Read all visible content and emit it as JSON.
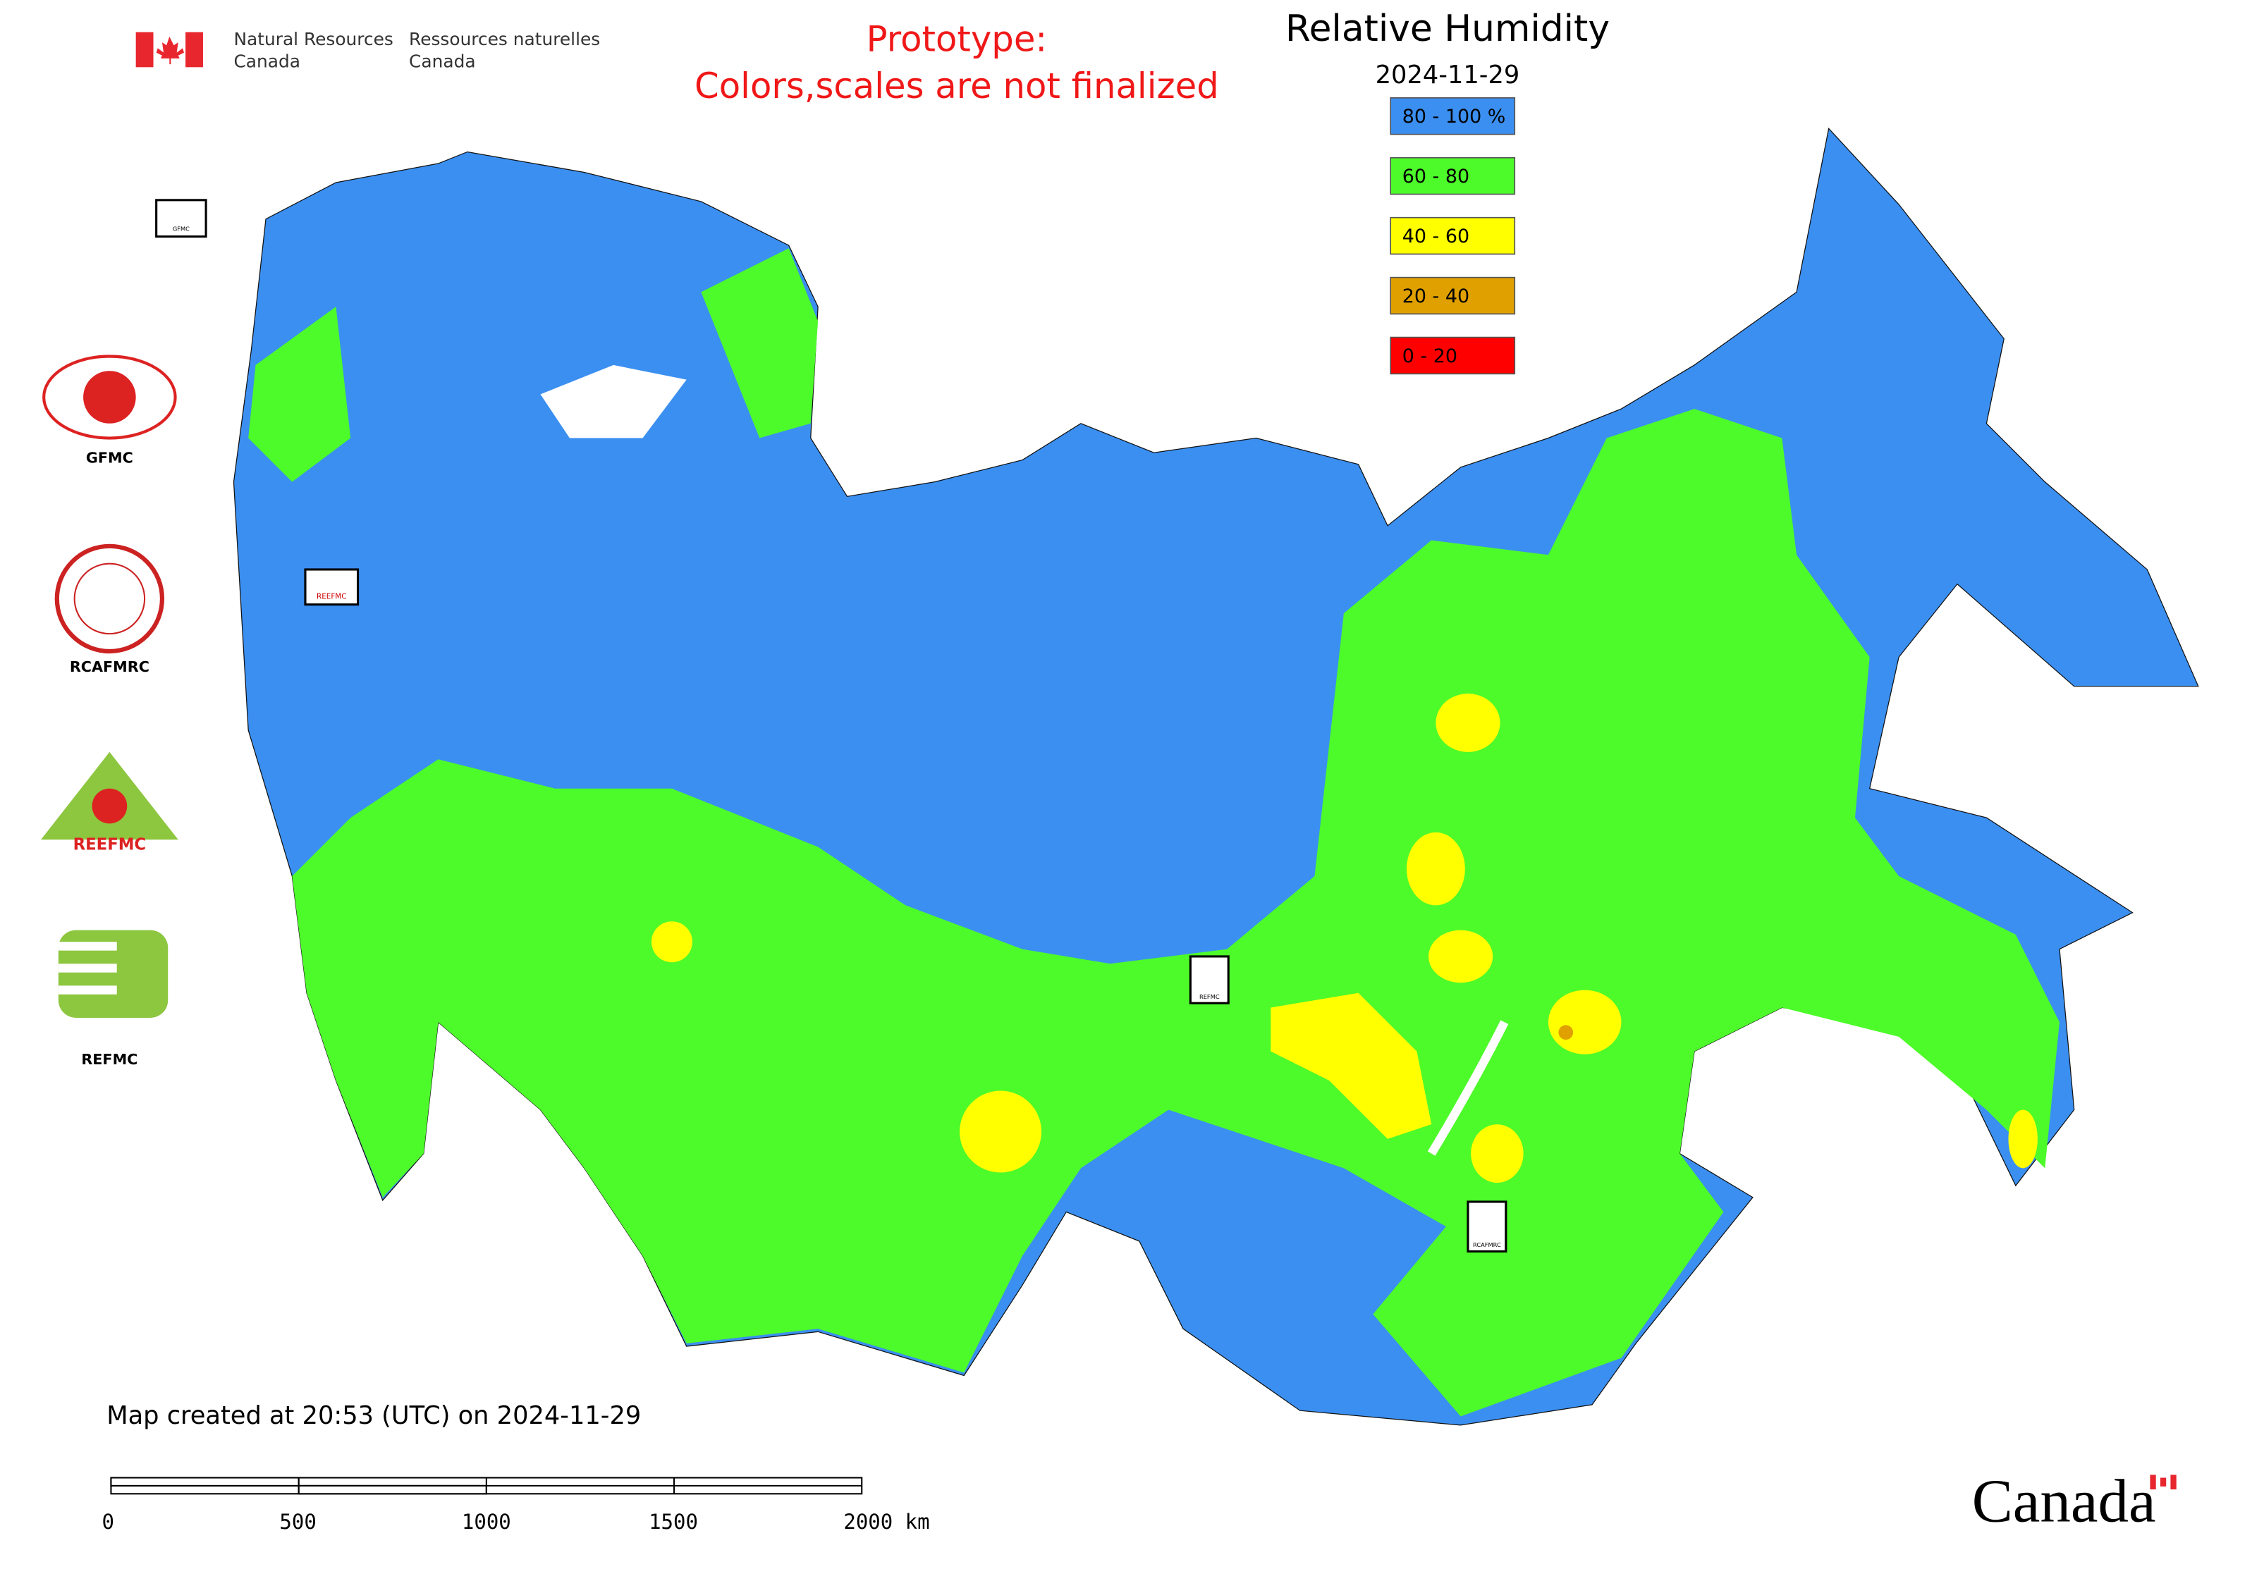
{
  "header": {
    "agency_en": [
      "Natural Resources",
      "Canada"
    ],
    "agency_fr": [
      "Ressources naturelles",
      "Canada"
    ],
    "notice": [
      "Prototype:",
      "Colors,scales are not finalized"
    ],
    "title": "Relative Humidity",
    "date": "2024-11-29"
  },
  "legend": [
    {
      "label": "80 - 100 %",
      "color": "#3b8ff0"
    },
    {
      "label": "60 - 80",
      "color": "#4dfa2a"
    },
    {
      "label": "40 - 60",
      "color": "#ffff00"
    },
    {
      "label": "20 - 40",
      "color": "#e0a000"
    },
    {
      "label": "0 - 20",
      "color": "#ff0000"
    }
  ],
  "logos": [
    "GFMC",
    "RCAFMRC",
    "REEFMC",
    "REFMC"
  ],
  "map_markers": [
    "GFMC",
    "REEFMC",
    "REFMC",
    "RCAFMRC"
  ],
  "footer": {
    "created": "Map created at 20:53 (UTC) on 2024-11-29",
    "scale_labels": [
      "0",
      "500",
      "1000",
      "1500",
      "2000 km"
    ],
    "wordmark": "Canada"
  }
}
